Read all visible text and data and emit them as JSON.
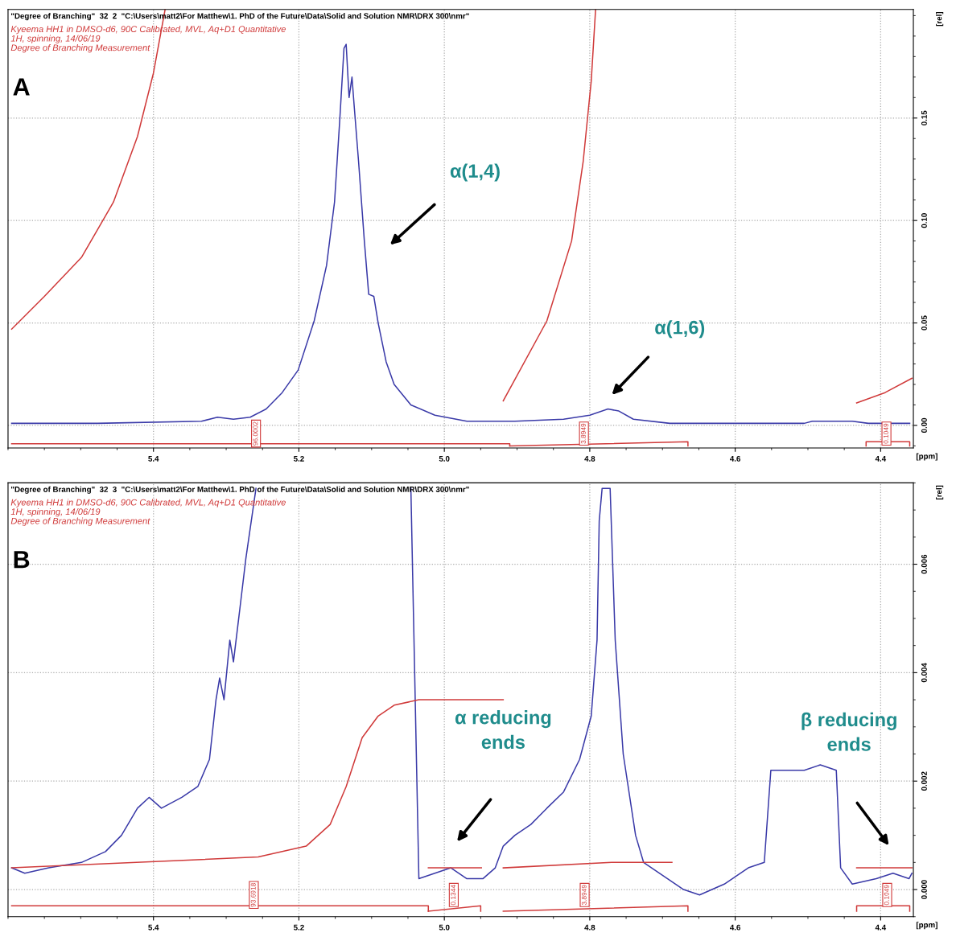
{
  "chart_data": [
    {
      "type": "line",
      "title": "\"Degree of Branching\"  32  2  \"C:\\Users\\matt2\\For Matthew\\1. PhD of the Future\\Data\\Solid and Solution NMR\\DRX 300\\nmr\"",
      "subtitle": "Kyeema HH1 in DMSO-d6, 90C Calibrated, MVL, Aq+D1 Quantitative\n1H, spinning, 14/06/19\nDegree of Branching Measurement",
      "xlabel": "[ppm]",
      "ylabel": "[rel]",
      "xlim": [
        5.6,
        4.355
      ],
      "ylim": [
        -0.011,
        0.203
      ],
      "xticks": [
        5.4,
        5.2,
        {
          "value": 5.0,
          "label": "5.0"
        },
        4.8,
        4.6,
        4.4
      ],
      "yticks": [
        {
          "value": 0,
          "label": "0.00"
        },
        {
          "value": 0.05,
          "label": "0.05"
        },
        {
          "value": 0.1,
          "label": "0.10"
        },
        {
          "value": 0.15,
          "label": "0.15"
        }
      ],
      "grid": true,
      "series": [
        {
          "color": "#3a3aa8",
          "x": [
            5.595,
            5.477,
            5.334,
            5.312,
            5.29,
            5.267,
            5.245,
            5.223,
            5.201,
            5.179,
            5.162,
            5.151,
            5.144,
            5.138,
            5.135,
            5.131,
            5.127,
            5.124,
            5.118,
            5.11,
            5.104,
            5.097,
            5.091,
            5.08,
            5.069,
            5.046,
            5.013,
            4.969,
            4.903,
            4.836,
            4.8,
            4.775,
            4.76,
            4.74,
            4.69,
            4.505,
            4.494,
            4.439,
            4.417,
            4.36
          ],
          "values": [
            0.001,
            0.001,
            0.002,
            0.004,
            0.003,
            0.004,
            0.008,
            0.016,
            0.027,
            0.051,
            0.078,
            0.109,
            0.148,
            0.184,
            0.186,
            0.16,
            0.17,
            0.156,
            0.129,
            0.09,
            0.064,
            0.063,
            0.05,
            0.031,
            0.02,
            0.01,
            0.005,
            0.002,
            0.002,
            0.003,
            0.005,
            0.008,
            0.007,
            0.003,
            0.001,
            0.001,
            0.002,
            0.002,
            0.001,
            0.001
          ]
        },
        {
          "color": "#d03a3a",
          "x": [
            5.595,
            5.55,
            5.499,
            5.455,
            5.422,
            5.4,
            5.384
          ],
          "values": [
            0.047,
            0.063,
            0.082,
            0.109,
            0.141,
            0.172,
            0.203
          ]
        },
        {
          "color": "#d03a3a",
          "x": [
            4.919,
            4.859,
            4.825,
            4.809,
            4.798,
            4.792
          ],
          "values": [
            0.012,
            0.051,
            0.09,
            0.129,
            0.168,
            0.203
          ]
        },
        {
          "color": "#d03a3a",
          "x": [
            4.433,
            4.394,
            4.357
          ],
          "values": [
            0.011,
            0.016,
            0.023
          ]
        },
        {
          "color": "#d03a3a",
          "x": [
            5.595,
            4.91,
            4.91
          ],
          "values": [
            -0.009,
            -0.009,
            -0.01
          ]
        },
        {
          "color": "#d03a3a",
          "x": [
            4.91,
            4.665,
            4.665
          ],
          "values": [
            -0.01,
            -0.008,
            -0.01
          ]
        },
        {
          "color": "#d03a3a",
          "x": [
            4.42,
            4.42,
            4.36,
            4.36
          ],
          "values": [
            -0.01,
            -0.008,
            -0.008,
            -0.01
          ]
        }
      ],
      "annotations": [
        {
          "text": "96.0002",
          "x": 5.259,
          "y": -0.004
        },
        {
          "text": "3.8949",
          "x": 4.808,
          "y": -0.004
        },
        {
          "text": "0.1049",
          "x": 4.392,
          "y": -0.004
        },
        "α(1,4)",
        "α(1,6)",
        "A"
      ]
    },
    {
      "type": "line",
      "title": "\"Degree of Branching\"  32  3  \"C:\\Users\\matt2\\For Matthew\\1. PhD of the Future\\Data\\Solid and Solution NMR\\DRX 300\\nmr\"",
      "subtitle": "Kyeema HH1 in DMSO-d6, 90C Calibrated, MVL, Aq+D1 Quantitative\n1H, spinning, 14/06/19\nDegree of Branching Measurement",
      "xlabel": "[ppm]",
      "ylabel": "[rel]",
      "xlim": [
        5.6,
        4.355
      ],
      "ylim": [
        -0.0005,
        0.0075
      ],
      "xticks": [
        5.4,
        5.2,
        {
          "value": 5.0,
          "label": "5.0"
        },
        4.8,
        4.6,
        4.4
      ],
      "yticks": [
        {
          "value": 0,
          "label": "0.000"
        },
        {
          "value": 0.002,
          "label": "0.002"
        },
        {
          "value": 0.004,
          "label": "0.004"
        },
        {
          "value": 0.006,
          "label": "0.006"
        }
      ],
      "grid": true,
      "series": [
        {
          "color": "#3a3aa8",
          "x": [
            5.595,
            5.577,
            5.544,
            5.499,
            5.466,
            5.444,
            5.422,
            5.406,
            5.389,
            5.361,
            5.339,
            5.323,
            5.314,
            5.309,
            5.303,
            5.295,
            5.29,
            5.281,
            5.273,
            5.259,
            5.16,
            5.046,
            5.035,
            5.013,
            4.991,
            4.969,
            4.947,
            4.93,
            4.919,
            4.903,
            4.881,
            4.859,
            4.836,
            4.814,
            4.798,
            4.79,
            4.787,
            4.783,
            4.772,
            4.765,
            4.754,
            4.737,
            4.726,
            4.693,
            4.671,
            4.649,
            4.615,
            4.582,
            4.56,
            4.551,
            4.505,
            4.483,
            4.461,
            4.455,
            4.439,
            4.406,
            4.383,
            4.361,
            4.357
          ],
          "values": [
            0.0004,
            0.0003,
            0.0004,
            0.0005,
            0.0007,
            0.001,
            0.0015,
            0.0017,
            0.0015,
            0.0017,
            0.0019,
            0.0024,
            0.0035,
            0.0039,
            0.0035,
            0.0046,
            0.0042,
            0.0052,
            0.0061,
            0.0074,
            null,
            0.0074,
            0.0002,
            0.0003,
            0.0004,
            0.0002,
            0.0002,
            0.0004,
            0.0008,
            0.001,
            0.0012,
            0.0015,
            0.0018,
            0.0024,
            0.0032,
            0.0046,
            0.0068,
            0.0074,
            0.0074,
            0.0046,
            0.0025,
            0.001,
            0.0005,
            0.0002,
            0.0,
            -0.0001,
            0.0001,
            0.0004,
            0.0005,
            0.0022,
            0.0022,
            0.0023,
            0.0022,
            0.0004,
            0.0001,
            0.0002,
            0.0003,
            0.0002,
            0.0003
          ]
        },
        {
          "color": "#d03a3a",
          "x": [
            5.595,
            5.256,
            5.19,
            5.157,
            5.135,
            5.113,
            5.091,
            5.069,
            5.035,
            4.919
          ],
          "values": [
            0.0004,
            0.0006,
            0.0008,
            0.0012,
            0.0019,
            0.0028,
            0.0032,
            0.0034,
            0.0035,
            0.0035
          ]
        },
        {
          "color": "#d03a3a",
          "x": [
            5.022,
            4.949
          ],
          "values": [
            0.0004,
            0.0004
          ]
        },
        {
          "color": "#d03a3a",
          "x": [
            4.919,
            4.77,
            4.687
          ],
          "values": [
            0.0004,
            0.0005,
            0.0005
          ]
        },
        {
          "color": "#d03a3a",
          "x": [
            4.433,
            4.357
          ],
          "values": [
            0.0004,
            0.0004
          ]
        },
        {
          "color": "#d03a3a",
          "x": [
            5.595,
            5.022,
            5.022
          ],
          "values": [
            -0.0003,
            -0.0003,
            -0.0004
          ]
        },
        {
          "color": "#d03a3a",
          "x": [
            5.022,
            4.95,
            4.95
          ],
          "values": [
            -0.0004,
            -0.0003,
            -0.0004
          ]
        },
        {
          "color": "#d03a3a",
          "x": [
            4.919,
            4.665,
            4.665
          ],
          "values": [
            -0.0004,
            -0.0003,
            -0.0004
          ]
        },
        {
          "color": "#d03a3a",
          "x": [
            4.433,
            4.433,
            4.36,
            4.36
          ],
          "values": [
            -0.0004,
            -0.0003,
            -0.0003,
            -0.0004
          ]
        }
      ],
      "annotations": [
        {
          "text": "93.6918",
          "x": 5.262,
          "y": -0.0001
        },
        {
          "text": "0.1344",
          "x": 4.987,
          "y": -0.0001
        },
        {
          "text": "3.8949",
          "x": 4.807,
          "y": -0.0001
        },
        {
          "text": "0.1049",
          "x": 4.391,
          "y": -0.0001
        },
        "α reducing\nends",
        "β reducing\nends",
        "B"
      ]
    }
  ]
}
